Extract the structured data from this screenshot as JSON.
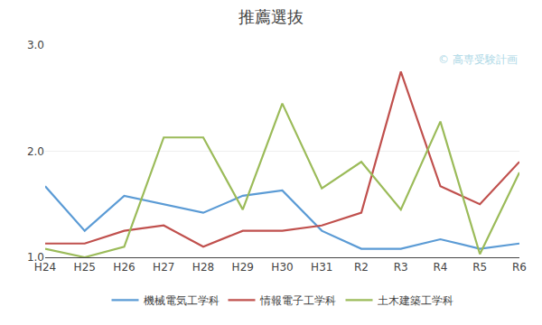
{
  "chart_data": {
    "type": "line",
    "title": "推薦選抜",
    "categories": [
      "H24",
      "H25",
      "H26",
      "H27",
      "H28",
      "H29",
      "H30",
      "H31",
      "R2",
      "R3",
      "R4",
      "R5",
      "R6"
    ],
    "series": [
      {
        "name": "機械電気工学科",
        "color": "#5b9bd5",
        "values": [
          1.67,
          1.25,
          1.58,
          1.5,
          1.42,
          1.58,
          1.63,
          1.25,
          1.08,
          1.08,
          1.17,
          1.08,
          1.13
        ]
      },
      {
        "name": "情報電子工学科",
        "color": "#c0504d",
        "values": [
          1.13,
          1.13,
          1.25,
          1.3,
          1.1,
          1.25,
          1.25,
          1.3,
          1.42,
          2.75,
          1.67,
          1.5,
          1.9
        ]
      },
      {
        "name": "土木建築工学科",
        "color": "#9bbb59",
        "values": [
          1.08,
          1.0,
          1.1,
          2.13,
          2.13,
          1.45,
          2.45,
          1.65,
          1.9,
          1.45,
          2.28,
          1.03,
          1.8
        ]
      }
    ],
    "ylim": [
      1.0,
      3.0
    ],
    "yticks": [
      {
        "value": 1.0,
        "label": "1.0"
      },
      {
        "value": 2.0,
        "label": "2.0"
      },
      {
        "value": 3.0,
        "label": "3.0"
      }
    ],
    "annotations": [
      "© 高専受験計画"
    ],
    "grid": true,
    "legend": "bottom"
  }
}
